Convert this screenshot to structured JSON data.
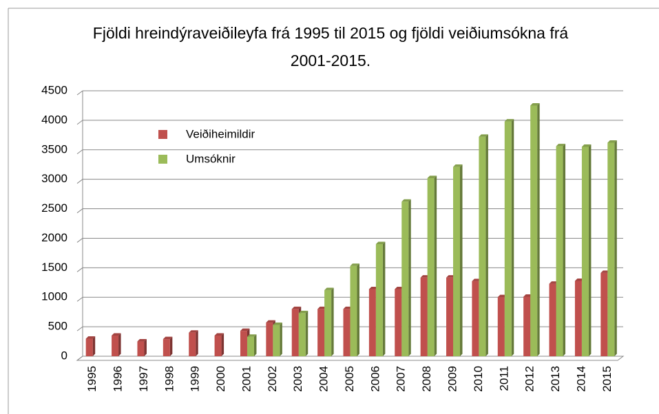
{
  "chart_data": {
    "type": "bar",
    "title": "Fjöldi hreindýraveiðileyfa frá 1995 til 2015 og fjöldi veiðiumsókna frá 2001-2015.",
    "categories": [
      "1995",
      "1996",
      "1997",
      "1998",
      "1999",
      "2000",
      "2001",
      "2002",
      "2003",
      "2004",
      "2005",
      "2006",
      "2007",
      "2008",
      "2009",
      "2010",
      "2011",
      "2012",
      "2013",
      "2014",
      "2015"
    ],
    "series": [
      {
        "name": "Veiðiheimildir",
        "color": "#c0504d",
        "values": [
          297,
          350,
          250,
          290,
          400,
          350,
          430,
          570,
          800,
          800,
          800,
          1137,
          1137,
          1333,
          1333,
          1272,
          1001,
          1009,
          1229,
          1277,
          1412
        ]
      },
      {
        "name": "Umsóknir",
        "color": "#9bbb59",
        "values": [
          null,
          null,
          null,
          null,
          null,
          null,
          330,
          530,
          730,
          1120,
          1530,
          1900,
          2620,
          3020,
          3210,
          3720,
          3980,
          4250,
          3560,
          3550,
          3620
        ]
      }
    ],
    "ylim": [
      0,
      4500
    ],
    "yticks": [
      0,
      500,
      1000,
      1500,
      2000,
      2500,
      3000,
      3500,
      4000,
      4500
    ],
    "grid": true,
    "legend": "upper left"
  }
}
